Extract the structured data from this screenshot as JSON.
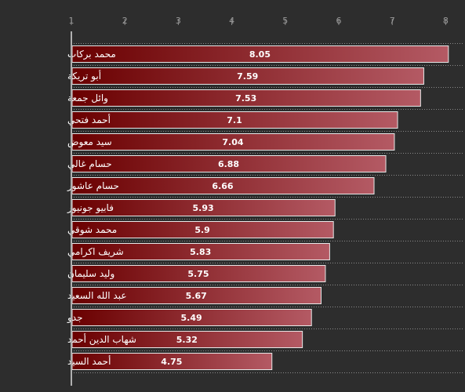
{
  "chart_data": {
    "type": "bar",
    "orientation": "horizontal",
    "title": "",
    "xlabel": "",
    "ylabel": "",
    "xlim": [
      1,
      8.3
    ],
    "xticks": [
      1,
      2,
      3,
      4,
      5,
      6,
      7,
      8
    ],
    "grid": true,
    "categories": [
      "محمد بركات",
      "أبو تريكة",
      "وائل جمعة",
      "أحمد فتحي",
      "سيد معوض",
      "حسام غالي",
      "حسام عاشور",
      "فابيو جونيور",
      "محمد شوقي",
      "شريف اكرامي",
      "وليد سليمان",
      "عبد الله السعيد",
      "جدو",
      "شهاب الدين أحمد",
      "أحمد السيد"
    ],
    "values": [
      8.05,
      7.59,
      7.53,
      7.1,
      7.04,
      6.88,
      6.66,
      5.93,
      5.9,
      5.83,
      5.75,
      5.67,
      5.49,
      5.32,
      4.75
    ],
    "value_labels": [
      "8.05",
      "7.59",
      "7.53",
      "7.1",
      "7.04",
      "6.88",
      "6.66",
      "5.93",
      "5.9",
      "5.83",
      "5.75",
      "5.67",
      "5.49",
      "5.32",
      "4.75"
    ],
    "colors": {
      "background": "#2d2d2d",
      "bar_start": "#6a0000",
      "bar_end": "#b45a64",
      "bar_border": "#e8e8e8",
      "text": "#ffffff",
      "tick_text": "#9a9a9a"
    }
  }
}
